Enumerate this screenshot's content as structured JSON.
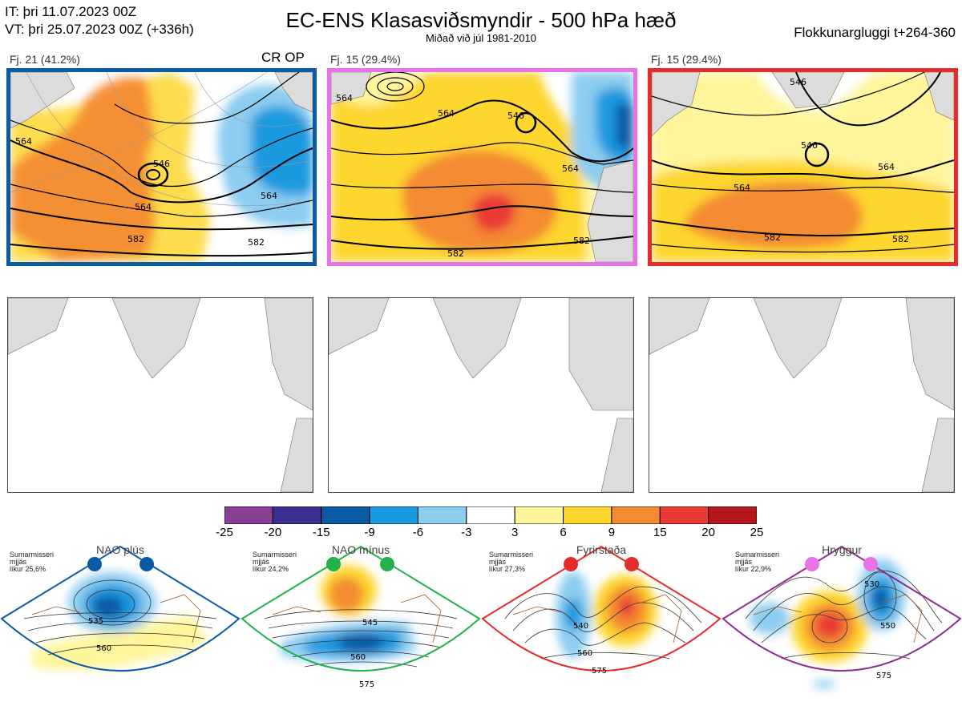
{
  "header": {
    "it_line": "IT: þri 11.07.2023 00Z",
    "vt_line": "VT: þri 25.07.2023 00Z  (+336h)",
    "title": "EC-ENS Klasasviðsmyndir - 500 hPa hæð",
    "subtitle": "Miðað við júl 1981-2010",
    "window": "Flokkunargluggi t+264-360"
  },
  "clusters": [
    {
      "label": "Fj. 21 (41.2%)",
      "flag": "CR OP",
      "border_color": "#0b5aa6",
      "contour_labels": [
        "564",
        "546",
        "564",
        "582",
        "564",
        "582"
      ]
    },
    {
      "label": "Fj. 15 (29.4%)",
      "flag": "",
      "border_color": "#e873e8",
      "contour_labels": [
        "564",
        "546",
        "564",
        "564",
        "582",
        "582"
      ]
    },
    {
      "label": "Fj. 15 (29.4%)",
      "flag": "",
      "border_color": "#e52c2c",
      "contour_labels": [
        "546",
        "546",
        "564",
        "564",
        "582",
        "582"
      ]
    }
  ],
  "colorbar": {
    "ticks": [
      "-25",
      "-20",
      "-15",
      "-9",
      "-6",
      "-3",
      "3",
      "6",
      "9",
      "15",
      "20",
      "25"
    ],
    "colors": [
      "#8a3f97",
      "#3b2f93",
      "#0b5aa6",
      "#1a9ae0",
      "#8ccdf0",
      "#ffffff",
      "#fff59b",
      "#fdd62e",
      "#f48b32",
      "#ea3a34",
      "#b5171e"
    ]
  },
  "regimes": [
    {
      "title": "NAO plús",
      "info": [
        "Sumarmisseri",
        "mjjás",
        "líkur 25,6%"
      ],
      "dot_color": "#0b5aa6",
      "frame_color": "#0b5aa6",
      "contour_labels": [
        "535",
        "560"
      ]
    },
    {
      "title": "NAO mínus",
      "info": [
        "Sumarmisseri",
        "mjjás",
        "líkur 24,2%"
      ],
      "dot_color": "#22b14c",
      "frame_color": "#22b14c",
      "contour_labels": [
        "545",
        "560",
        "575"
      ]
    },
    {
      "title": "Fyrirstaða",
      "info": [
        "Sumarmisseri",
        "mjjás",
        "líkur 27,3%"
      ],
      "dot_color": "#e52c2c",
      "frame_color": "#e52c2c",
      "contour_labels": [
        "540",
        "560",
        "575"
      ]
    },
    {
      "title": "Hryggur",
      "info": [
        "Sumarmisseri",
        "mjjás",
        "líkur 22,9%"
      ],
      "dot_color": "#e873e8",
      "frame_color": "#8e2d92",
      "contour_labels": [
        "530",
        "550",
        "575"
      ]
    }
  ],
  "chart_data": {
    "type": "heatmap",
    "title": "EC-ENS Klasasviðsmyndir - 500 hPa hæð",
    "subtitle": "Miðað við júl 1981-2010",
    "legend": "bottom",
    "color_scale_levels": [
      -25,
      -20,
      -15,
      -9,
      -6,
      -3,
      3,
      6,
      9,
      15,
      20,
      25
    ],
    "series": [
      {
        "name": "Fj. 21 (41.2%)",
        "contours": [
          546,
          564,
          582
        ]
      },
      {
        "name": "Fj. 15 (29.4%)",
        "contours": [
          546,
          564,
          582
        ]
      },
      {
        "name": "Fj. 15 (29.4%)",
        "contours": [
          546,
          564,
          582
        ]
      }
    ],
    "regimes": [
      {
        "name": "NAO plús",
        "probability": 25.6,
        "contours": [
          535,
          560
        ]
      },
      {
        "name": "NAO mínus",
        "probability": 24.2,
        "contours": [
          545,
          560,
          575
        ]
      },
      {
        "name": "Fyrirstaða",
        "probability": 27.3,
        "contours": [
          540,
          560,
          575
        ]
      },
      {
        "name": "Hryggur",
        "probability": 22.9,
        "contours": [
          530,
          550,
          575
        ]
      }
    ]
  }
}
